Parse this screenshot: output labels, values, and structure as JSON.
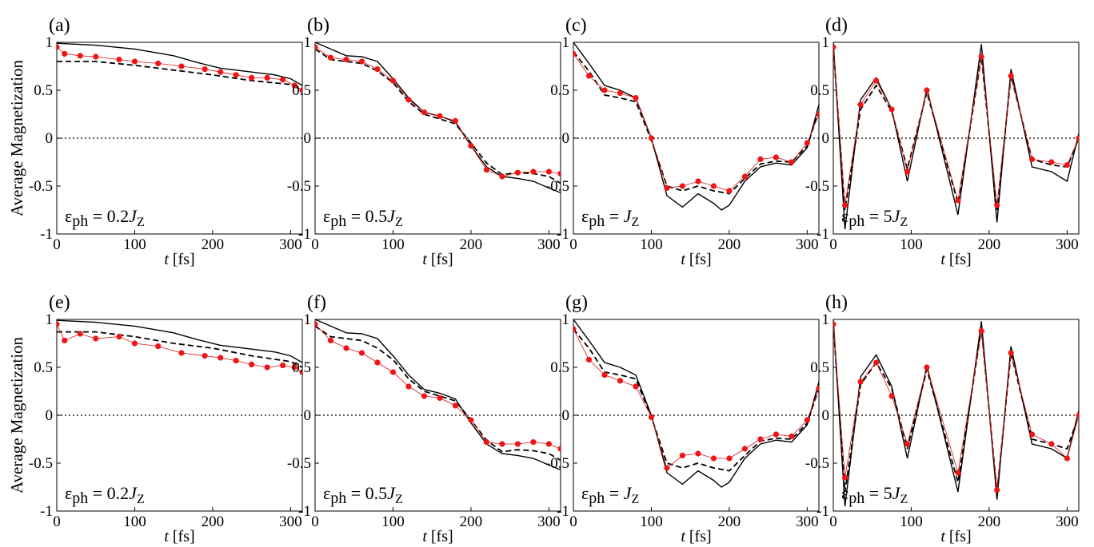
{
  "figure": {
    "ylabel": "Average Magnetization",
    "xlabel_var": "t",
    "xlabel_unit": " [fs]",
    "xticks": [
      "0",
      "100",
      "200",
      "300"
    ],
    "yticks": [
      "1",
      "0.5",
      "0",
      "-0.5",
      "-1"
    ],
    "legend_symbol": "ε",
    "legend_sub": "ph",
    "legend_J": "J",
    "legend_Jsub": "Z"
  },
  "chart_data": [
    {
      "panel": "(a)",
      "type": "line",
      "xlim": [
        0,
        315
      ],
      "ylim": [
        -1,
        1
      ],
      "grid": false,
      "legend_placement": "bottom-left",
      "coef": "0.2",
      "eps_ph_over_JZ": 0.2,
      "series": [
        {
          "style": "solid",
          "x": [
            0,
            50,
            100,
            150,
            180,
            210,
            250,
            280,
            300,
            315
          ],
          "y": [
            0.99,
            0.97,
            0.93,
            0.86,
            0.79,
            0.73,
            0.69,
            0.66,
            0.62,
            0.55
          ]
        },
        {
          "style": "dashed",
          "x": [
            0,
            50,
            100,
            150,
            200,
            250,
            300,
            315
          ],
          "y": [
            0.8,
            0.8,
            0.76,
            0.71,
            0.66,
            0.6,
            0.56,
            0.5
          ]
        },
        {
          "style": "red-dots",
          "x": [
            0,
            10,
            30,
            50,
            80,
            100,
            130,
            160,
            190,
            210,
            230,
            250,
            270,
            290,
            305,
            315
          ],
          "y": [
            0.95,
            0.88,
            0.86,
            0.85,
            0.82,
            0.8,
            0.78,
            0.75,
            0.72,
            0.69,
            0.66,
            0.63,
            0.63,
            0.61,
            0.55,
            0.5
          ]
        }
      ]
    },
    {
      "panel": "(b)",
      "type": "line",
      "xlim": [
        0,
        315
      ],
      "ylim": [
        -1,
        1
      ],
      "grid": false,
      "legend_placement": "bottom-left",
      "coef": "0.5",
      "eps_ph_over_JZ": 0.5,
      "series": [
        {
          "style": "solid",
          "x": [
            0,
            20,
            40,
            60,
            80,
            100,
            120,
            140,
            160,
            180,
            200,
            220,
            240,
            260,
            280,
            300,
            315
          ],
          "y": [
            1.0,
            0.93,
            0.86,
            0.85,
            0.8,
            0.62,
            0.42,
            0.27,
            0.23,
            0.17,
            -0.08,
            -0.3,
            -0.4,
            -0.42,
            -0.45,
            -0.52,
            -0.57
          ]
        },
        {
          "style": "dashed",
          "x": [
            0,
            20,
            40,
            60,
            80,
            100,
            120,
            140,
            160,
            180,
            200,
            220,
            240,
            260,
            280,
            300,
            315
          ],
          "y": [
            0.93,
            0.82,
            0.8,
            0.78,
            0.7,
            0.58,
            0.38,
            0.25,
            0.2,
            0.15,
            -0.05,
            -0.26,
            -0.38,
            -0.36,
            -0.37,
            -0.4,
            -0.47
          ]
        },
        {
          "style": "red-dots",
          "x": [
            0,
            20,
            40,
            60,
            80,
            100,
            120,
            140,
            160,
            180,
            200,
            220,
            240,
            260,
            280,
            300,
            315
          ],
          "y": [
            0.95,
            0.84,
            0.82,
            0.8,
            0.72,
            0.6,
            0.4,
            0.27,
            0.23,
            0.18,
            -0.08,
            -0.33,
            -0.4,
            -0.36,
            -0.35,
            -0.35,
            -0.37
          ]
        }
      ]
    },
    {
      "panel": "(c)",
      "type": "line",
      "xlim": [
        0,
        315
      ],
      "ylim": [
        -1,
        1
      ],
      "grid": false,
      "legend_placement": "bottom-left",
      "coef": "",
      "eps_ph_over_JZ": 1,
      "series": [
        {
          "style": "solid",
          "x": [
            0,
            20,
            40,
            60,
            80,
            100,
            120,
            140,
            160,
            180,
            190,
            200,
            220,
            240,
            260,
            280,
            300,
            315
          ],
          "y": [
            1.0,
            0.78,
            0.55,
            0.5,
            0.42,
            0.0,
            -0.6,
            -0.72,
            -0.58,
            -0.68,
            -0.75,
            -0.7,
            -0.45,
            -0.3,
            -0.26,
            -0.28,
            -0.1,
            0.35
          ]
        },
        {
          "style": "dashed",
          "x": [
            0,
            20,
            40,
            60,
            80,
            100,
            120,
            140,
            160,
            180,
            200,
            220,
            240,
            260,
            280,
            300,
            315
          ],
          "y": [
            0.9,
            0.7,
            0.45,
            0.42,
            0.38,
            -0.02,
            -0.5,
            -0.55,
            -0.5,
            -0.55,
            -0.58,
            -0.42,
            -0.27,
            -0.24,
            -0.25,
            -0.08,
            0.28
          ]
        },
        {
          "style": "red-dots",
          "x": [
            0,
            20,
            40,
            60,
            80,
            100,
            120,
            140,
            160,
            180,
            200,
            220,
            240,
            260,
            280,
            300,
            315
          ],
          "y": [
            0.88,
            0.65,
            0.5,
            0.47,
            0.42,
            0.0,
            -0.52,
            -0.5,
            -0.45,
            -0.5,
            -0.55,
            -0.4,
            -0.22,
            -0.2,
            -0.25,
            -0.05,
            0.25
          ]
        }
      ]
    },
    {
      "panel": "(d)",
      "type": "line",
      "xlim": [
        0,
        315
      ],
      "ylim": [
        -1,
        1
      ],
      "grid": false,
      "legend_placement": "bottom-left",
      "coef": "5",
      "eps_ph_over_JZ": 5,
      "series": [
        {
          "style": "solid",
          "x": [
            0,
            15,
            35,
            55,
            75,
            95,
            120,
            160,
            190,
            210,
            228,
            255,
            280,
            300,
            315
          ],
          "y": [
            1.0,
            -0.95,
            0.4,
            0.63,
            0.3,
            -0.45,
            0.52,
            -0.8,
            0.98,
            -0.88,
            0.72,
            -0.3,
            -0.35,
            -0.45,
            0.05
          ]
        },
        {
          "style": "dashed",
          "x": [
            0,
            15,
            35,
            55,
            75,
            95,
            120,
            160,
            190,
            210,
            228,
            255,
            280,
            300,
            315
          ],
          "y": [
            0.95,
            -0.75,
            0.3,
            0.55,
            0.28,
            -0.32,
            0.48,
            -0.68,
            0.85,
            -0.75,
            0.65,
            -0.22,
            -0.28,
            -0.3,
            0.0
          ]
        },
        {
          "style": "red-dots",
          "x": [
            0,
            15,
            35,
            55,
            75,
            95,
            120,
            160,
            190,
            210,
            228,
            255,
            280,
            300,
            315
          ],
          "y": [
            0.95,
            -0.7,
            0.35,
            0.6,
            0.3,
            -0.35,
            0.5,
            -0.65,
            0.85,
            -0.7,
            0.65,
            -0.22,
            -0.25,
            -0.28,
            0.0
          ]
        }
      ]
    },
    {
      "panel": "(e)",
      "type": "line",
      "xlim": [
        0,
        315
      ],
      "ylim": [
        -1,
        1
      ],
      "grid": false,
      "legend_placement": "bottom-left",
      "coef": "0.2",
      "eps_ph_over_JZ": 0.2,
      "series": [
        {
          "style": "solid",
          "x": [
            0,
            50,
            100,
            150,
            180,
            210,
            250,
            280,
            300,
            315
          ],
          "y": [
            0.99,
            0.97,
            0.93,
            0.86,
            0.79,
            0.73,
            0.69,
            0.66,
            0.62,
            0.55
          ]
        },
        {
          "style": "dashed",
          "x": [
            0,
            50,
            100,
            150,
            200,
            250,
            300,
            315
          ],
          "y": [
            0.87,
            0.87,
            0.82,
            0.75,
            0.7,
            0.62,
            0.56,
            0.5
          ]
        },
        {
          "style": "red-dots",
          "x": [
            0,
            10,
            30,
            50,
            80,
            100,
            130,
            160,
            190,
            210,
            230,
            250,
            270,
            290,
            305,
            315
          ],
          "y": [
            0.95,
            0.78,
            0.85,
            0.8,
            0.82,
            0.75,
            0.72,
            0.65,
            0.62,
            0.6,
            0.57,
            0.53,
            0.5,
            0.52,
            0.5,
            0.45
          ]
        }
      ]
    },
    {
      "panel": "(f)",
      "type": "line",
      "xlim": [
        0,
        315
      ],
      "ylim": [
        -1,
        1
      ],
      "grid": false,
      "legend_placement": "bottom-left",
      "coef": "0.5",
      "eps_ph_over_JZ": 0.5,
      "series": [
        {
          "style": "solid",
          "x": [
            0,
            20,
            40,
            60,
            80,
            100,
            120,
            140,
            160,
            180,
            200,
            220,
            240,
            260,
            280,
            300,
            315
          ],
          "y": [
            1.0,
            0.93,
            0.86,
            0.85,
            0.8,
            0.62,
            0.42,
            0.27,
            0.23,
            0.17,
            -0.08,
            -0.3,
            -0.4,
            -0.42,
            -0.45,
            -0.52,
            -0.57
          ]
        },
        {
          "style": "dashed",
          "x": [
            0,
            20,
            40,
            60,
            80,
            100,
            120,
            140,
            160,
            180,
            200,
            220,
            240,
            260,
            280,
            300,
            315
          ],
          "y": [
            0.93,
            0.82,
            0.8,
            0.78,
            0.7,
            0.58,
            0.38,
            0.25,
            0.2,
            0.15,
            -0.05,
            -0.26,
            -0.38,
            -0.36,
            -0.37,
            -0.4,
            -0.47
          ]
        },
        {
          "style": "red-dots",
          "x": [
            0,
            20,
            40,
            60,
            80,
            100,
            120,
            140,
            160,
            180,
            200,
            220,
            240,
            260,
            280,
            300,
            315
          ],
          "y": [
            0.95,
            0.78,
            0.7,
            0.65,
            0.55,
            0.45,
            0.3,
            0.2,
            0.18,
            0.1,
            -0.05,
            -0.28,
            -0.3,
            -0.3,
            -0.28,
            -0.3,
            -0.35
          ]
        }
      ]
    },
    {
      "panel": "(g)",
      "type": "line",
      "xlim": [
        0,
        315
      ],
      "ylim": [
        -1,
        1
      ],
      "grid": false,
      "legend_placement": "bottom-left",
      "coef": "",
      "eps_ph_over_JZ": 1,
      "series": [
        {
          "style": "solid",
          "x": [
            0,
            20,
            40,
            60,
            80,
            100,
            120,
            140,
            160,
            180,
            190,
            200,
            220,
            240,
            260,
            280,
            300,
            315
          ],
          "y": [
            1.0,
            0.78,
            0.55,
            0.5,
            0.42,
            0.0,
            -0.6,
            -0.72,
            -0.58,
            -0.68,
            -0.75,
            -0.7,
            -0.45,
            -0.3,
            -0.26,
            -0.28,
            -0.1,
            0.35
          ]
        },
        {
          "style": "dashed",
          "x": [
            0,
            20,
            40,
            60,
            80,
            100,
            120,
            140,
            160,
            180,
            200,
            220,
            240,
            260,
            280,
            300,
            315
          ],
          "y": [
            0.9,
            0.7,
            0.45,
            0.42,
            0.38,
            -0.02,
            -0.5,
            -0.55,
            -0.5,
            -0.55,
            -0.58,
            -0.42,
            -0.27,
            -0.24,
            -0.25,
            -0.08,
            0.28
          ]
        },
        {
          "style": "red-dots",
          "x": [
            0,
            20,
            40,
            60,
            80,
            100,
            120,
            140,
            160,
            180,
            200,
            220,
            240,
            260,
            280,
            300,
            315
          ],
          "y": [
            0.9,
            0.58,
            0.42,
            0.36,
            0.3,
            -0.02,
            -0.55,
            -0.42,
            -0.4,
            -0.45,
            -0.45,
            -0.35,
            -0.25,
            -0.2,
            -0.22,
            -0.05,
            0.28
          ]
        }
      ]
    },
    {
      "panel": "(h)",
      "type": "line",
      "xlim": [
        0,
        315
      ],
      "ylim": [
        -1,
        1
      ],
      "grid": false,
      "legend_placement": "bottom-left",
      "coef": "5",
      "eps_ph_over_JZ": 5,
      "series": [
        {
          "style": "solid",
          "x": [
            0,
            15,
            35,
            55,
            75,
            95,
            120,
            160,
            190,
            210,
            228,
            255,
            280,
            300,
            315
          ],
          "y": [
            1.0,
            -0.95,
            0.4,
            0.63,
            0.3,
            -0.45,
            0.52,
            -0.8,
            0.98,
            -0.88,
            0.72,
            -0.3,
            -0.35,
            -0.45,
            0.05
          ]
        },
        {
          "style": "dashed",
          "x": [
            0,
            15,
            35,
            55,
            75,
            95,
            120,
            160,
            190,
            210,
            228,
            255,
            280,
            300,
            315
          ],
          "y": [
            0.95,
            -0.8,
            0.32,
            0.55,
            0.28,
            -0.35,
            0.48,
            -0.7,
            0.9,
            -0.8,
            0.65,
            -0.25,
            -0.3,
            -0.35,
            0.0
          ]
        },
        {
          "style": "red-dots",
          "x": [
            0,
            15,
            35,
            55,
            75,
            95,
            120,
            160,
            190,
            210,
            228,
            255,
            280,
            300,
            315
          ],
          "y": [
            0.95,
            -0.65,
            0.35,
            0.55,
            0.2,
            -0.3,
            0.5,
            -0.6,
            0.88,
            -0.78,
            0.65,
            -0.2,
            -0.3,
            -0.45,
            0.0
          ]
        }
      ]
    }
  ]
}
